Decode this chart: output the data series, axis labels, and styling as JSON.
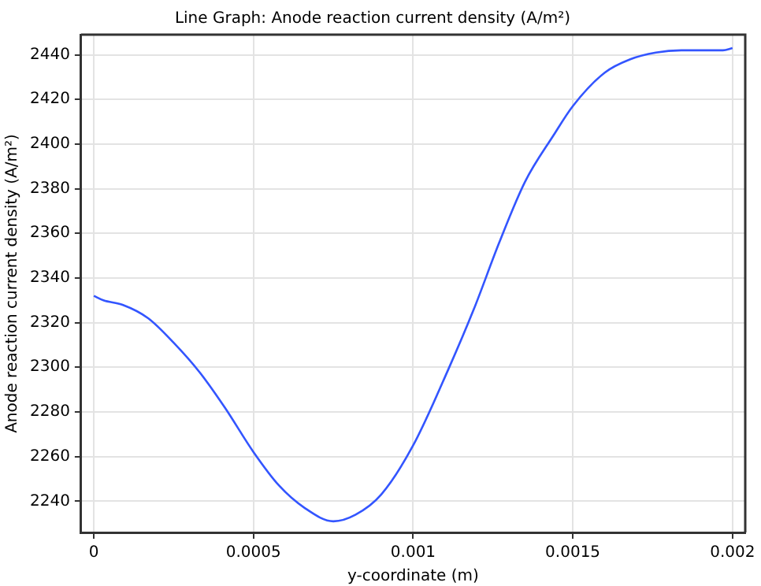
{
  "chart_data": {
    "type": "line",
    "title": "Line Graph: Anode reaction current density (A/m²)",
    "xlabel": "y-coordinate (m)",
    "ylabel": "Anode reaction current density (A/m²)",
    "series": [
      {
        "color": "#3355ff",
        "x": [
          0,
          3e-05,
          9e-05,
          0.00017,
          0.00025,
          0.00033,
          0.00041,
          0.0005,
          0.00058,
          0.00066,
          0.00075,
          0.00082,
          0.0009,
          0.001,
          0.00111,
          0.00119,
          0.00127,
          0.00135,
          0.00144,
          0.0015,
          0.0016,
          0.00168,
          0.00176,
          0.00184,
          0.00192,
          0.00197,
          0.002
        ],
        "values": [
          2332,
          2330,
          2328,
          2322,
          2311,
          2298,
          2282,
          2262,
          2247,
          2237,
          2231,
          2234,
          2243,
          2265,
          2299,
          2326,
          2356,
          2383,
          2404,
          2417,
          2432,
          2438,
          2441,
          2442,
          2442,
          2442,
          2443
        ]
      }
    ],
    "xlim": [
      -4e-05,
      0.00204
    ],
    "xticks": [
      0,
      0.0005,
      0.001,
      0.0015,
      0.002
    ],
    "ylim": [
      2226,
      2449
    ],
    "yticks": [
      2240,
      2260,
      2280,
      2300,
      2320,
      2340,
      2360,
      2380,
      2400,
      2420,
      2440
    ],
    "grid": true,
    "legend": false,
    "marker": "none",
    "line_style": "solid"
  }
}
